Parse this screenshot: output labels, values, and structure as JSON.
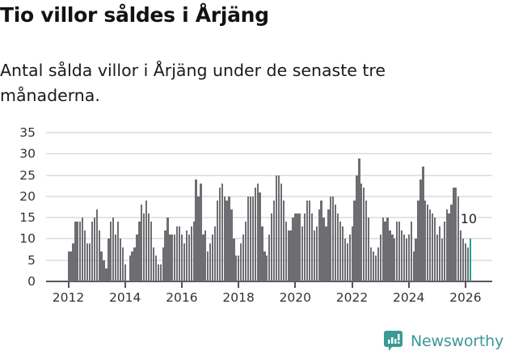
{
  "header": {
    "title": "Tio villor såldes i Årjäng",
    "subtitle": "Antal sålda villor i Årjäng under de senaste tre månaderna."
  },
  "branding": {
    "logo_text": "Newsworthy",
    "logo_icon": "newsworthy-chart-bubble-icon",
    "brand_color": "#3a9a94"
  },
  "colors": {
    "bar": "#6e6d72",
    "highlight": "#1aa39a",
    "grid": "#e4e4e4",
    "axis": "#555559"
  },
  "chart_data": {
    "type": "bar",
    "title": "Tio villor såldes i Årjäng",
    "subtitle": "Antal sålda villor i Årjäng under de senaste tre månaderna.",
    "xlabel": "",
    "ylabel": "",
    "ylim": [
      0,
      35
    ],
    "yticks": [
      0,
      5,
      10,
      15,
      20,
      25,
      30,
      35
    ],
    "xticks": [
      "2012",
      "2014",
      "2016",
      "2018",
      "2020",
      "2022",
      "2024",
      "2026"
    ],
    "grid": true,
    "legend": null,
    "frequency": "monthly",
    "start": "2012-01",
    "end": "2026-03",
    "highlight": {
      "index": 170,
      "label": "10",
      "color": "#1aa39a"
    },
    "series": [
      {
        "name": "Antal sålda villor (rullande 3 mån)",
        "values": [
          7,
          7,
          9,
          14,
          14,
          14,
          15,
          12,
          9,
          9,
          14,
          15,
          17,
          12,
          7,
          5,
          3,
          10,
          14,
          15,
          11,
          14,
          10,
          8,
          4,
          0,
          6,
          7,
          8,
          11,
          14,
          18,
          16,
          19,
          16,
          14,
          8,
          6,
          4,
          4,
          8,
          12,
          15,
          11,
          11,
          11,
          13,
          13,
          11,
          9,
          12,
          11,
          13,
          14,
          24,
          20,
          23,
          11,
          12,
          7,
          9,
          11,
          13,
          19,
          22,
          23,
          20,
          19,
          20,
          17,
          10,
          6,
          6,
          9,
          11,
          14,
          20,
          20,
          20,
          22,
          23,
          21,
          13,
          7,
          6,
          11,
          16,
          19,
          25,
          25,
          23,
          19,
          14,
          12,
          12,
          15,
          16,
          16,
          16,
          13,
          16,
          19,
          19,
          16,
          12,
          13,
          17,
          19,
          15,
          13,
          17,
          20,
          20,
          18,
          16,
          14,
          13,
          10,
          9,
          11,
          13,
          19,
          25,
          29,
          23,
          22,
          19,
          15,
          8,
          7,
          6,
          8,
          11,
          15,
          14,
          15,
          12,
          11,
          10,
          14,
          14,
          12,
          11,
          10,
          11,
          14,
          7,
          10,
          19,
          24,
          27,
          19,
          18,
          17,
          16,
          15,
          11,
          13,
          10,
          14,
          17,
          16,
          18,
          22,
          22,
          20,
          12,
          10,
          9,
          8,
          10
        ]
      }
    ]
  }
}
